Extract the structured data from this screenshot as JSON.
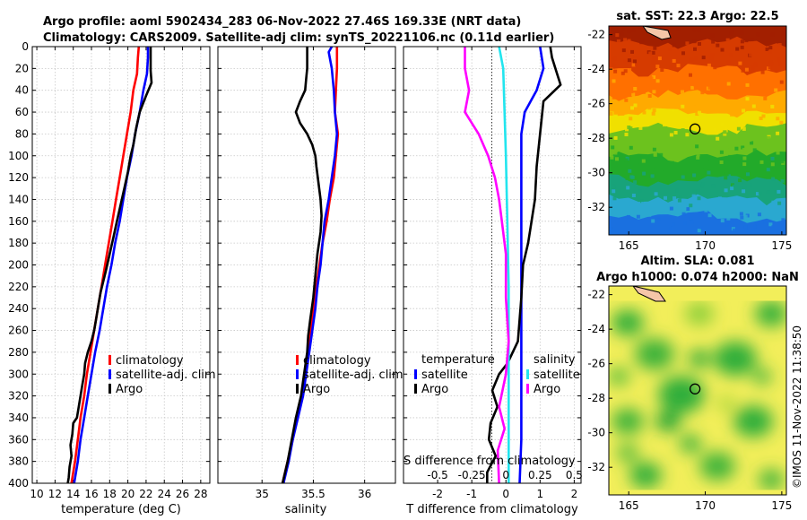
{
  "header": {
    "line1": "Argo profile: aoml 5902434_283 06-Nov-2022 27.46S 169.33E (NRT data)",
    "line2": "Climatology: CARS2009. Satellite-adj clim: synTS_20221106.nc (0.11d earlier)"
  },
  "watermark": "©IMOS 11-Nov-2022 11:38:50",
  "colors": {
    "climatology": "#ff0000",
    "satellite": "#0000ff",
    "argo": "#000000",
    "satellite_s": "#22e5ee",
    "argo_s": "#ff00ff"
  },
  "chart_data": [
    {
      "type": "line",
      "id": "temperature",
      "xlabel": "temperature (deg C)",
      "xlim": [
        9.5,
        29
      ],
      "xticks": [
        "10",
        "12",
        "14",
        "16",
        "18",
        "20",
        "22",
        "24",
        "26",
        "28"
      ],
      "ylim": [
        0,
        400
      ],
      "yticks": [
        "0",
        "20",
        "40",
        "60",
        "80",
        "100",
        "120",
        "140",
        "160",
        "180",
        "200",
        "220",
        "240",
        "260",
        "280",
        "300",
        "320",
        "340",
        "360",
        "380",
        "400"
      ],
      "legend": [
        "climatology",
        "satellite-adj. clim",
        "Argo"
      ],
      "series": [
        {
          "name": "climatology",
          "points": [
            [
              21.2,
              0
            ],
            [
              21.1,
              10
            ],
            [
              21.0,
              25
            ],
            [
              20.6,
              40
            ],
            [
              20.3,
              60
            ],
            [
              19.9,
              80
            ],
            [
              19.5,
              100
            ],
            [
              19.1,
              120
            ],
            [
              18.7,
              140
            ],
            [
              18.3,
              160
            ],
            [
              17.9,
              180
            ],
            [
              17.5,
              200
            ],
            [
              17.1,
              220
            ],
            [
              16.7,
              240
            ],
            [
              16.3,
              260
            ],
            [
              15.9,
              280
            ],
            [
              15.5,
              300
            ],
            [
              15.2,
              320
            ],
            [
              14.8,
              340
            ],
            [
              14.5,
              360
            ],
            [
              14.2,
              380
            ],
            [
              13.8,
              400
            ]
          ]
        },
        {
          "name": "satellite-adj. clim",
          "points": [
            [
              22.2,
              0
            ],
            [
              22.2,
              10
            ],
            [
              22.1,
              25
            ],
            [
              21.7,
              40
            ],
            [
              21.3,
              60
            ],
            [
              20.8,
              80
            ],
            [
              20.4,
              100
            ],
            [
              19.9,
              120
            ],
            [
              19.5,
              140
            ],
            [
              19.1,
              160
            ],
            [
              18.6,
              180
            ],
            [
              18.2,
              200
            ],
            [
              17.7,
              220
            ],
            [
              17.3,
              240
            ],
            [
              16.9,
              260
            ],
            [
              16.4,
              280
            ],
            [
              16.0,
              300
            ],
            [
              15.6,
              320
            ],
            [
              15.2,
              340
            ],
            [
              14.8,
              360
            ],
            [
              14.5,
              380
            ],
            [
              14.1,
              400
            ]
          ]
        },
        {
          "name": "Argo",
          "points": [
            [
              22.5,
              0
            ],
            [
              22.5,
              10
            ],
            [
              22.5,
              22
            ],
            [
              22.6,
              33
            ],
            [
              22.0,
              45
            ],
            [
              21.3,
              60
            ],
            [
              20.9,
              75
            ],
            [
              20.6,
              90
            ],
            [
              20.3,
              100
            ],
            [
              20.0,
              115
            ],
            [
              19.6,
              130
            ],
            [
              19.2,
              145
            ],
            [
              18.8,
              160
            ],
            [
              18.4,
              175
            ],
            [
              18.0,
              190
            ],
            [
              17.6,
              205
            ],
            [
              17.3,
              215
            ],
            [
              17.0,
              225
            ],
            [
              16.8,
              235
            ],
            [
              16.5,
              250
            ],
            [
              16.3,
              260
            ],
            [
              16.0,
              270
            ],
            [
              15.6,
              280
            ],
            [
              15.3,
              290
            ],
            [
              15.2,
              300
            ],
            [
              15.0,
              310
            ],
            [
              14.8,
              320
            ],
            [
              14.6,
              330
            ],
            [
              14.4,
              340
            ],
            [
              14.0,
              345
            ],
            [
              13.9,
              355
            ],
            [
              13.7,
              365
            ],
            [
              13.8,
              375
            ],
            [
              13.6,
              385
            ],
            [
              13.5,
              395
            ],
            [
              13.4,
              400
            ]
          ]
        }
      ]
    },
    {
      "type": "line",
      "id": "salinity",
      "xlabel": "salinity",
      "xlim": [
        34.57,
        36.3
      ],
      "xticks": [
        "35",
        "35.5",
        "36"
      ],
      "ylim": [
        0,
        400
      ],
      "legend": [
        "climatology",
        "satellite-adj. clim",
        "Argo"
      ],
      "series": [
        {
          "name": "climatology",
          "points": [
            [
              35.73,
              0
            ],
            [
              35.73,
              20
            ],
            [
              35.72,
              40
            ],
            [
              35.71,
              60
            ],
            [
              35.74,
              80
            ],
            [
              35.72,
              100
            ],
            [
              35.7,
              120
            ],
            [
              35.66,
              140
            ],
            [
              35.63,
              160
            ],
            [
              35.59,
              180
            ],
            [
              35.56,
              200
            ],
            [
              35.53,
              220
            ],
            [
              35.5,
              240
            ],
            [
              35.47,
              260
            ],
            [
              35.45,
              280
            ],
            [
              35.42,
              300
            ],
            [
              35.39,
              320
            ],
            [
              35.34,
              340
            ],
            [
              35.3,
              360
            ],
            [
              35.25,
              380
            ],
            [
              35.2,
              400
            ]
          ]
        },
        {
          "name": "satellite-adj. clim",
          "points": [
            [
              35.68,
              0
            ],
            [
              35.65,
              5
            ],
            [
              35.68,
              20
            ],
            [
              35.7,
              40
            ],
            [
              35.71,
              60
            ],
            [
              35.73,
              80
            ],
            [
              35.71,
              100
            ],
            [
              35.68,
              120
            ],
            [
              35.65,
              140
            ],
            [
              35.61,
              160
            ],
            [
              35.59,
              180
            ],
            [
              35.57,
              200
            ],
            [
              35.54,
              220
            ],
            [
              35.52,
              240
            ],
            [
              35.49,
              260
            ],
            [
              35.46,
              280
            ],
            [
              35.43,
              300
            ],
            [
              35.4,
              320
            ],
            [
              35.35,
              340
            ],
            [
              35.3,
              360
            ],
            [
              35.26,
              380
            ],
            [
              35.21,
              400
            ]
          ]
        },
        {
          "name": "Argo",
          "points": [
            [
              35.44,
              0
            ],
            [
              35.44,
              20
            ],
            [
              35.43,
              30
            ],
            [
              35.42,
              40
            ],
            [
              35.37,
              50
            ],
            [
              35.33,
              60
            ],
            [
              35.37,
              70
            ],
            [
              35.44,
              80
            ],
            [
              35.49,
              90
            ],
            [
              35.52,
              100
            ],
            [
              35.53,
              110
            ],
            [
              35.55,
              125
            ],
            [
              35.57,
              140
            ],
            [
              35.58,
              155
            ],
            [
              35.57,
              170
            ],
            [
              35.54,
              190
            ],
            [
              35.52,
              210
            ],
            [
              35.5,
              230
            ],
            [
              35.47,
              250
            ],
            [
              35.45,
              265
            ],
            [
              35.44,
              280
            ],
            [
              35.41,
              300
            ],
            [
              35.38,
              320
            ],
            [
              35.33,
              340
            ],
            [
              35.29,
              360
            ],
            [
              35.25,
              380
            ],
            [
              35.2,
              400
            ]
          ]
        }
      ]
    },
    {
      "type": "line",
      "id": "difference",
      "xlabel": "T difference from climatology",
      "xlabel_top": "S difference from climatology",
      "xlim": [
        -3,
        2.2
      ],
      "xticks": [
        "-2",
        "-1",
        "0",
        "1",
        "2"
      ],
      "xticks_top": [
        "-0.5",
        "-0.25",
        "0",
        "0.25",
        "0.5"
      ],
      "ylim": [
        0,
        400
      ],
      "legend_t_title": "temperature",
      "legend_s_title": "salinity",
      "legend": [
        "satellite",
        "Argo",
        "satellite",
        "Argo"
      ],
      "series": [
        {
          "name": "T satellite",
          "points": [
            [
              1.0,
              0
            ],
            [
              1.1,
              20
            ],
            [
              0.9,
              40
            ],
            [
              0.55,
              60
            ],
            [
              0.45,
              80
            ],
            [
              0.45,
              120
            ],
            [
              0.45,
              160
            ],
            [
              0.45,
              200
            ],
            [
              0.45,
              240
            ],
            [
              0.45,
              280
            ],
            [
              0.45,
              320
            ],
            [
              0.45,
              360
            ],
            [
              0.4,
              400
            ]
          ]
        },
        {
          "name": "T Argo",
          "points": [
            [
              1.3,
              0
            ],
            [
              1.35,
              10
            ],
            [
              1.5,
              25
            ],
            [
              1.6,
              35
            ],
            [
              1.1,
              50
            ],
            [
              1.05,
              65
            ],
            [
              1.0,
              80
            ],
            [
              0.9,
              110
            ],
            [
              0.85,
              140
            ],
            [
              0.75,
              160
            ],
            [
              0.65,
              180
            ],
            [
              0.5,
              200
            ],
            [
              0.45,
              230
            ],
            [
              0.4,
              250
            ],
            [
              0.35,
              270
            ],
            [
              0.2,
              280
            ],
            [
              0.05,
              290
            ],
            [
              -0.2,
              300
            ],
            [
              -0.4,
              315
            ],
            [
              -0.25,
              330
            ],
            [
              -0.45,
              345
            ],
            [
              -0.5,
              360
            ],
            [
              -0.3,
              375
            ],
            [
              -0.55,
              390
            ],
            [
              -0.55,
              400
            ]
          ]
        },
        {
          "name": "S satellite",
          "points": [
            [
              -0.05,
              0
            ],
            [
              -0.02,
              20
            ],
            [
              -0.01,
              60
            ],
            [
              0.0,
              100
            ],
            [
              0.01,
              160
            ],
            [
              0.02,
              220
            ],
            [
              0.02,
              280
            ],
            [
              0.02,
              340
            ],
            [
              0.02,
              400
            ]
          ]
        },
        {
          "name": "S Argo",
          "points": [
            [
              -0.3,
              0
            ],
            [
              -0.3,
              20
            ],
            [
              -0.27,
              40
            ],
            [
              -0.3,
              60
            ],
            [
              -0.2,
              80
            ],
            [
              -0.13,
              100
            ],
            [
              -0.08,
              120
            ],
            [
              -0.05,
              140
            ],
            [
              -0.03,
              160
            ],
            [
              0.0,
              190
            ],
            [
              0.0,
              230
            ],
            [
              0.02,
              270
            ],
            [
              0.0,
              300
            ],
            [
              -0.05,
              330
            ],
            [
              -0.01,
              350
            ],
            [
              -0.06,
              370
            ],
            [
              -0.05,
              400
            ]
          ]
        }
      ]
    },
    {
      "type": "heatmap",
      "id": "sst_map",
      "title": "sat. SST: 22.3 Argo: 22.5",
      "xticks": [
        "165",
        "170",
        "175"
      ],
      "yticks": [
        "-22",
        "-24",
        "-26",
        "-28",
        "-30",
        "-32"
      ],
      "xlim": [
        163.7,
        175.3
      ],
      "ylim": [
        -33.6,
        -21.5
      ],
      "marker": [
        169.33,
        -27.46
      ],
      "bands": [
        {
          "lat": -22,
          "color": "#a21f00"
        },
        {
          "lat": -23,
          "color": "#d63b00"
        },
        {
          "lat": -24.5,
          "color": "#ff7000"
        },
        {
          "lat": -26,
          "color": "#ffaa00"
        },
        {
          "lat": -27,
          "color": "#f0e000"
        },
        {
          "lat": -28,
          "color": "#6cc21e"
        },
        {
          "lat": -29.5,
          "color": "#22aa2a"
        },
        {
          "lat": -31,
          "color": "#18a37a"
        },
        {
          "lat": -32,
          "color": "#2aa8d0"
        },
        {
          "lat": -33,
          "color": "#1a70e0"
        }
      ]
    },
    {
      "type": "heatmap",
      "id": "sla_map",
      "title_line1": "Altim. SLA: 0.081",
      "title_line2": "Argo h1000: 0.074 h2000: NaN",
      "xticks": [
        "165",
        "170",
        "175"
      ],
      "yticks": [
        "-22",
        "-24",
        "-26",
        "-28",
        "-30",
        "-32"
      ],
      "xlim": [
        163.7,
        175.3
      ],
      "ylim": [
        -33.6,
        -21.5
      ],
      "marker": [
        169.33,
        -27.46
      ]
    }
  ]
}
